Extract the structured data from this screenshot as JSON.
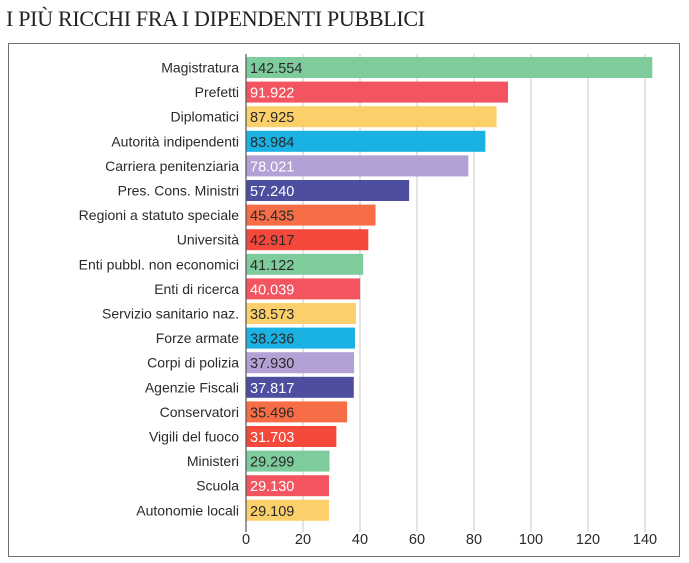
{
  "page_title": "I PIÙ RICCHI FRA I DIPENDENTI PUBBLICI",
  "chart_data": {
    "type": "bar",
    "orientation": "horizontal",
    "title": "I PIÙ RICCHI FRA I DIPENDENTI PUBBLICI",
    "xlabel": "",
    "ylabel": "",
    "xlim": [
      0,
      140
    ],
    "x_ticks": [
      0,
      20,
      40,
      60,
      80,
      100,
      120,
      140
    ],
    "grid": true,
    "categories": [
      "Magistratura",
      "Prefetti",
      "Diplomatici",
      "Autorità indipendenti",
      "Carriera penitenziaria",
      "Pres. Cons. Ministri",
      "Regioni a statuto speciale",
      "Università",
      "Enti pubbl. non economici",
      "Enti di ricerca",
      "Servizio sanitario naz.",
      "Forze armate",
      "Corpi di polizia",
      "Agenzie Fiscali",
      "Conservatori",
      "Vigili del fuoco",
      "Ministeri",
      "Scuola",
      "Autonomie locali"
    ],
    "values": [
      142.554,
      91.922,
      87.925,
      83.984,
      78.021,
      57.24,
      45.435,
      42.917,
      41.122,
      40.039,
      38.573,
      38.236,
      37.93,
      37.817,
      35.496,
      31.703,
      29.299,
      29.13,
      29.109
    ],
    "value_labels": [
      "142.554",
      "91.922",
      "87.925",
      "83.984",
      "78.021",
      "57.240",
      "45.435",
      "42.917",
      "41.122",
      "40.039",
      "38.573",
      "38.236",
      "37.930",
      "37.817",
      "35.496",
      "31.703",
      "29.299",
      "29.130",
      "29.109"
    ],
    "bar_colors": [
      "#7ecb9c",
      "#f2555f",
      "#fbcf6a",
      "#1ab1e3",
      "#b3a0d4",
      "#4d4ea0",
      "#f76d45",
      "#f4493a",
      "#7ecb9c",
      "#f2555f",
      "#fbcf6a",
      "#1ab1e3",
      "#b3a0d4",
      "#4d4ea0",
      "#f76d45",
      "#f4493a",
      "#7ecb9c",
      "#f2555f",
      "#fbcf6a"
    ],
    "value_label_colors": [
      "#2a2a2a",
      "#ffffff",
      "#2a2a2a",
      "#2a2a2a",
      "#ffffff",
      "#ffffff",
      "#2a2a2a",
      "#2a2a2a",
      "#2a2a2a",
      "#ffffff",
      "#2a2a2a",
      "#2a2a2a",
      "#2a2a2a",
      "#ffffff",
      "#2a2a2a",
      "#ffffff",
      "#2a2a2a",
      "#ffffff",
      "#2a2a2a"
    ]
  }
}
